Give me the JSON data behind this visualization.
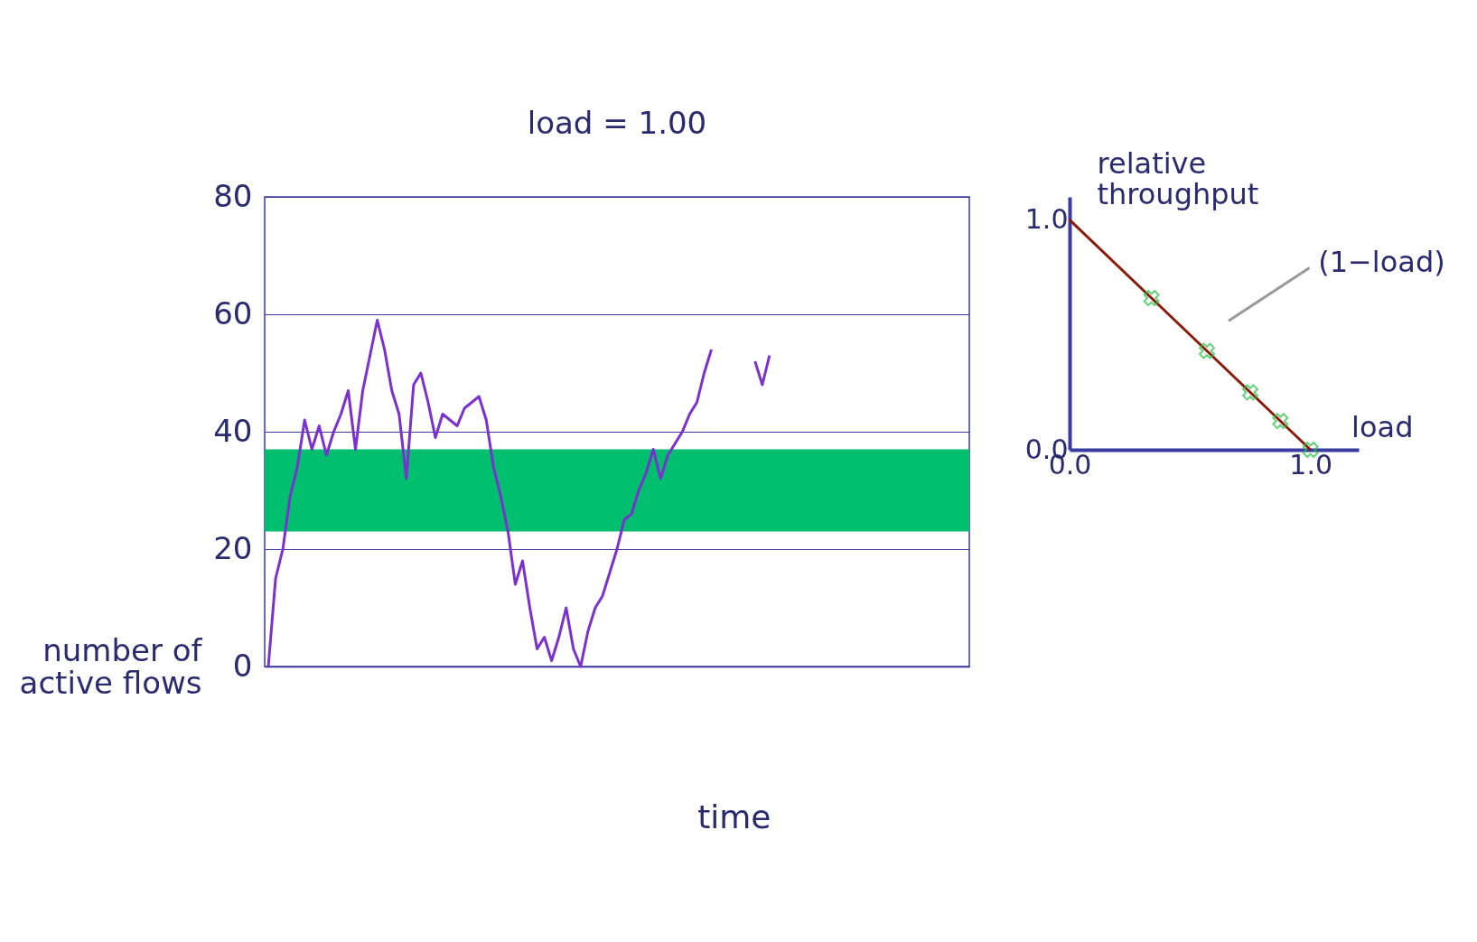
{
  "chart_data": [
    {
      "type": "line",
      "xlabel": "time",
      "ylabel": "number of active flows",
      "categories": [
        null,
        null,
        null,
        null,
        null,
        null,
        null,
        null,
        null,
        null,
        null,
        null,
        null,
        null,
        null,
        null,
        null,
        null,
        null,
        null,
        null,
        null,
        null,
        null,
        null,
        null,
        null,
        null,
        null,
        null,
        null,
        null,
        null,
        null,
        null,
        null,
        null,
        null,
        null,
        null,
        null,
        null,
        null,
        null,
        null,
        null,
        null,
        null,
        null,
        null,
        null,
        null,
        null,
        null,
        null,
        null,
        null,
        null,
        null,
        null,
        null,
        null,
        null,
        null,
        null,
        null,
        null,
        null,
        null,
        null,
        null,
        null,
        null,
        null,
        null,
        null,
        null,
        null,
        null,
        null,
        null,
        null,
        null,
        null,
        null,
        null,
        null,
        null,
        null,
        null,
        null,
        null,
        null,
        null,
        null,
        null,
        null
      ],
      "series": [
        {
          "color": "#7b30d0",
          "values": [
            0,
            15,
            20,
            29,
            34,
            42,
            37,
            41,
            36,
            40,
            43,
            47,
            37,
            47,
            53,
            59,
            54,
            47,
            43,
            32,
            48,
            50,
            45,
            39,
            43,
            42,
            41,
            44,
            45,
            46,
            42,
            34,
            29,
            23,
            14,
            18,
            10,
            3,
            5,
            1,
            5,
            10,
            3,
            0,
            6,
            10,
            12,
            16,
            20,
            25,
            26,
            30,
            33,
            37,
            32,
            36,
            38,
            40,
            43,
            45,
            50,
            54,
            null,
            null,
            null,
            null,
            null,
            null,
            null,
            null,
            null,
            null,
            null,
            null,
            null,
            null,
            null,
            null,
            null,
            null,
            null,
            null,
            null,
            null,
            null,
            null,
            null,
            null,
            null,
            null,
            null,
            null,
            null,
            null,
            null,
            null,
            null
          ]
        },
        {
          "color": "#7b30d0",
          "values": [
            null,
            null,
            null,
            null,
            null,
            null,
            null,
            null,
            null,
            null,
            null,
            null,
            null,
            null,
            null,
            null,
            null,
            null,
            null,
            null,
            null,
            null,
            null,
            null,
            null,
            null,
            null,
            null,
            null,
            null,
            null,
            null,
            null,
            null,
            null,
            null,
            null,
            null,
            null,
            null,
            null,
            null,
            null,
            null,
            null,
            null,
            null,
            null,
            null,
            null,
            null,
            null,
            null,
            null,
            null,
            null,
            null,
            null,
            null,
            null,
            null,
            null,
            null,
            null,
            null,
            null,
            null,
            52,
            48,
            53,
            null,
            null,
            null,
            null,
            null,
            null,
            null,
            null,
            null,
            null,
            null,
            null,
            null,
            null,
            null,
            null,
            null,
            null,
            null,
            null,
            null,
            null,
            null,
            null,
            null,
            null,
            null
          ]
        }
      ],
      "bands": [
        {
          "axis": "y",
          "from": 23,
          "to": 37,
          "color": "#00c070"
        }
      ],
      "annotations": [
        "load = 1.00"
      ],
      "ylim": [
        0,
        80
      ],
      "yticks": [
        0,
        20,
        40,
        60,
        80
      ],
      "grid": "y",
      "tick_labels": "y"
    },
    {
      "type": "line",
      "xlabel": "load",
      "ylabel": "relative throughput",
      "series": [
        {
          "type": "line",
          "color": "#8b1a0a",
          "x": [
            0,
            1
          ],
          "values": [
            1,
            0
          ],
          "marker": "none"
        },
        {
          "type": "scatter",
          "color": "#22c040",
          "x": [
            0.34,
            0.57,
            0.75,
            0.875,
            1.0
          ],
          "values": [
            0.66,
            0.43,
            0.25,
            0.125,
            0
          ],
          "marker": "cross"
        }
      ],
      "annotations": [
        "(1−load)"
      ],
      "xlim": [
        0,
        1.2
      ],
      "ylim": [
        0,
        1.1
      ],
      "xticks": [
        {
          "value": 0,
          "label": "0.0"
        },
        {
          "value": 1,
          "label": "1.0"
        }
      ],
      "yticks": [
        {
          "value": 0,
          "label": "0.0"
        },
        {
          "value": 1,
          "label": "1.0"
        }
      ]
    }
  ]
}
